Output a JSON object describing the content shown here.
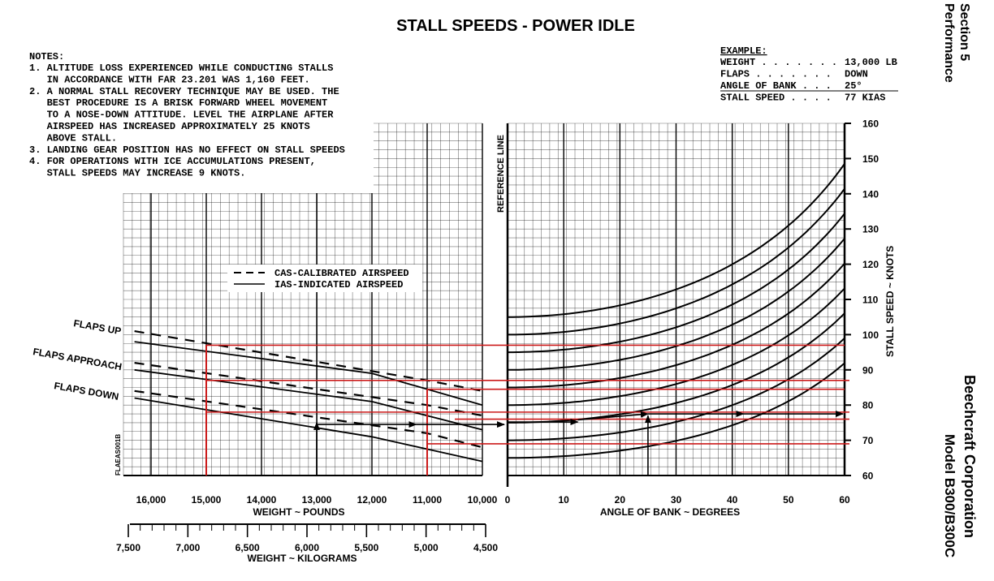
{
  "header": {
    "title": "STALL SPEEDS - POWER IDLE",
    "section": "Section 5",
    "section_sub": "Performance",
    "company": "Beechcraft Corporation",
    "model": "Model B300/B300C"
  },
  "notes": {
    "heading": "NOTES:",
    "lines": [
      "1. ALTITUDE LOSS EXPERIENCED WHILE CONDUCTING STALLS",
      "   IN ACCORDANCE WITH FAR 23.201 WAS 1,160 FEET.",
      "2. A NORMAL STALL RECOVERY TECHNIQUE MAY BE USED. THE",
      "   BEST PROCEDURE IS A BRISK FORWARD WHEEL MOVEMENT",
      "   TO A NOSE-DOWN ATTITUDE. LEVEL THE AIRPLANE AFTER",
      "   AIRSPEED HAS INCREASED APPROXIMATELY 25 KNOTS",
      "   ABOVE STALL.",
      "3. LANDING GEAR POSITION HAS NO EFFECT ON STALL SPEEDS",
      "4. FOR OPERATIONS WITH ICE ACCUMULATIONS PRESENT,",
      "   STALL SPEEDS MAY INCREASE 9 KNOTS."
    ]
  },
  "example": {
    "heading": "EXAMPLE:",
    "rows": [
      {
        "label": "WEIGHT . . . . . . .",
        "value": "13,000 LB"
      },
      {
        "label": "FLAPS . . . . . . .",
        "value": "DOWN"
      },
      {
        "label": "ANGLE OF BANK . . .",
        "value": "25°"
      },
      {
        "label": "STALL SPEED . . . .",
        "value": "77 KIAS"
      }
    ]
  },
  "legend": {
    "cas": "CAS-CALIBRATED AIRSPEED",
    "ias": "IAS-INDICATED AIRSPEED"
  },
  "figure_id": "FLAEAS001B",
  "reference_line_label": "REFERENCE LINE",
  "colors": {
    "ink": "#000000",
    "example_path": "#cc1a1a",
    "grid": "#000000"
  },
  "chart_data": {
    "type": "line",
    "weight_axis": {
      "label": "WEIGHT ~ POUNDS",
      "range": [
        16500,
        10000
      ],
      "ticks": [
        16000,
        15000,
        14000,
        13000,
        12000,
        11000,
        10000
      ],
      "tick_labels": [
        "16,000",
        "15,000",
        "14,000",
        "13,000",
        "12,000",
        "11,000",
        "10,000"
      ]
    },
    "kg_axis": {
      "label": "WEIGHT ~ KILOGRAMS",
      "ticks": [
        7500,
        7000,
        6500,
        6000,
        5500,
        5000,
        4500
      ],
      "tick_labels": [
        "7,500",
        "7,000",
        "6,500",
        "6,000",
        "5,500",
        "5,000",
        "4,500"
      ]
    },
    "bank_axis": {
      "label": "ANGLE OF BANK ~ DEGREES",
      "range": [
        0,
        60
      ],
      "ticks": [
        0,
        10,
        20,
        30,
        40,
        50,
        60
      ],
      "tick_labels": [
        "0",
        "10",
        "20",
        "30",
        "40",
        "50",
        "60"
      ]
    },
    "speed_axis": {
      "label": "STALL SPEED ~ KNOTS",
      "range": [
        60,
        160
      ],
      "ticks": [
        60,
        70,
        80,
        90,
        100,
        110,
        120,
        130,
        140,
        150,
        160
      ],
      "tick_labels": [
        "60",
        "70",
        "80",
        "90",
        "100",
        "110",
        "120",
        "130",
        "140",
        "150",
        "160"
      ]
    },
    "weight_series": [
      {
        "name": "FLAPS UP",
        "kind": "CAS",
        "points": [
          [
            16300,
            101
          ],
          [
            11000,
            87
          ],
          [
            10000,
            84
          ]
        ]
      },
      {
        "name": "FLAPS UP",
        "kind": "IAS",
        "points": [
          [
            16300,
            98
          ],
          [
            12000,
            89
          ],
          [
            10000,
            80
          ]
        ]
      },
      {
        "name": "FLAPS APPROACH",
        "kind": "CAS",
        "points": [
          [
            16300,
            92
          ],
          [
            11000,
            80
          ],
          [
            10000,
            77
          ]
        ]
      },
      {
        "name": "FLAPS APPROACH",
        "kind": "IAS",
        "points": [
          [
            16300,
            90
          ],
          [
            12000,
            81
          ],
          [
            10000,
            73
          ]
        ]
      },
      {
        "name": "FLAPS DOWN",
        "kind": "CAS",
        "points": [
          [
            16300,
            84
          ],
          [
            11000,
            72
          ],
          [
            10000,
            68
          ]
        ]
      },
      {
        "name": "FLAPS DOWN",
        "kind": "IAS",
        "points": [
          [
            16300,
            82
          ],
          [
            12000,
            71
          ],
          [
            10000,
            64
          ]
        ]
      }
    ],
    "bank_curves_base_speeds": [
      65,
      70,
      75,
      80,
      85,
      90,
      95,
      100,
      105
    ],
    "example_path": {
      "weight_lb": 13000,
      "flaps": "DOWN",
      "bank_deg": 25,
      "stall_speed_kias": 77,
      "red_lines_knots": [
        97,
        87,
        84.5,
        77.5,
        76,
        69
      ]
    },
    "flap_labels": [
      "FLAPS UP",
      "FLAPS APPROACH",
      "FLAPS DOWN"
    ]
  }
}
